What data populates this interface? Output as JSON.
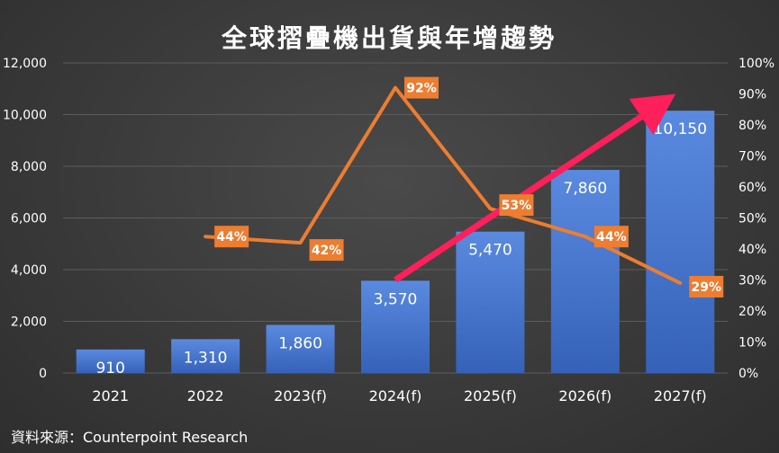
{
  "chart_data": {
    "type": "bar",
    "title": "全球摺疊機出貨與年增趨勢",
    "categories": [
      "2021",
      "2022",
      "2023(f)",
      "2024(f)",
      "2025(f)",
      "2026(f)",
      "2027(f)"
    ],
    "series": [
      {
        "type": "bar",
        "axis": "left",
        "values": [
          910,
          1310,
          1860,
          3570,
          5470,
          7860,
          10150
        ],
        "labels": [
          "910",
          "1,310",
          "1,860",
          "3,570",
          "5,470",
          "7,860",
          "10,150"
        ],
        "color": "#4472c4"
      },
      {
        "type": "line",
        "axis": "right",
        "values": [
          null,
          44,
          42,
          92,
          53,
          44,
          29
        ],
        "labels": [
          "",
          "44%",
          "42%",
          "92%",
          "53%",
          "44%",
          "29%"
        ],
        "color": "#ed7d31"
      }
    ],
    "y_left": {
      "min": 0,
      "max": 12000,
      "ticks": [
        "0",
        "2,000",
        "4,000",
        "6,000",
        "8,000",
        "10,000",
        "12,000"
      ]
    },
    "y_right": {
      "min": 0,
      "max": 100,
      "ticks": [
        "0%",
        "10%",
        "20%",
        "30%",
        "40%",
        "50%",
        "60%",
        "70%",
        "80%",
        "90%",
        "100%"
      ]
    },
    "grid": true,
    "legend": "none",
    "annotations": [
      {
        "type": "trend-arrow",
        "color": "#ff1f5a",
        "from": {
          "category": "2024(f)",
          "value_right": 30
        },
        "to": {
          "category": "2027(f)",
          "value_right": 90
        }
      }
    ]
  },
  "source": "資料來源：Counterpoint Research"
}
